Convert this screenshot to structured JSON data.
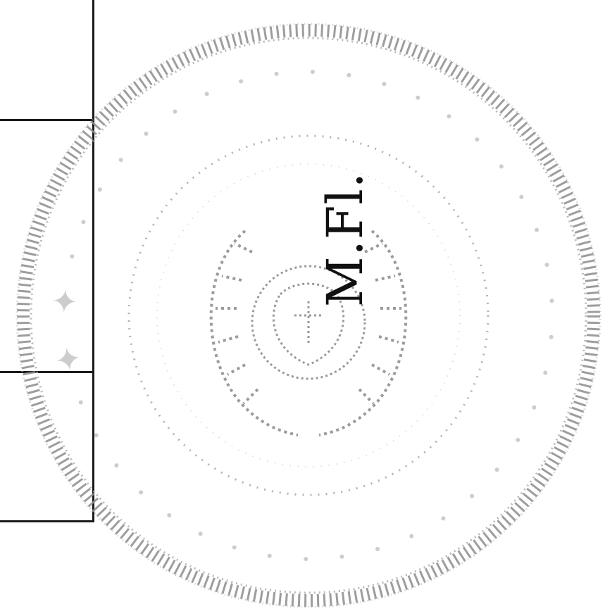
{
  "document": {
    "initials": "M.Fl.",
    "seal": {
      "type": "official round stamp",
      "color": "#9a9a9a",
      "legend": "faint circular inscription (illegible)"
    }
  }
}
